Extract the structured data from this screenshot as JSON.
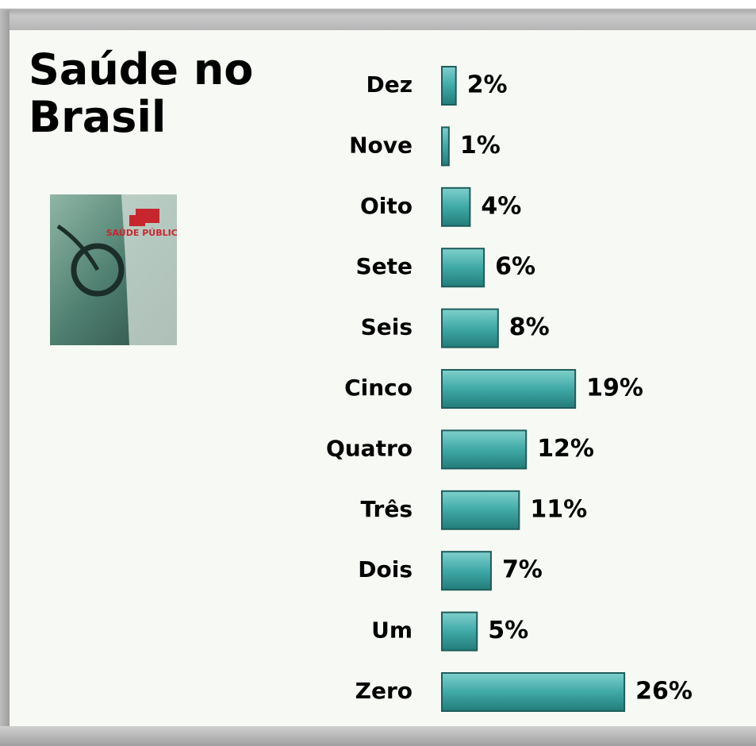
{
  "chart_data": {
    "type": "bar",
    "orientation": "horizontal",
    "title": "Saúde no Brasil",
    "categories": [
      "Dez",
      "Nove",
      "Oito",
      "Sete",
      "Seis",
      "Cinco",
      "Quatro",
      "Três",
      "Dois",
      "Um",
      "Zero"
    ],
    "values": [
      2,
      1,
      4,
      6,
      8,
      19,
      12,
      11,
      7,
      5,
      26
    ],
    "value_labels": [
      "2%",
      "1%",
      "4%",
      "6%",
      "8%",
      "19%",
      "12%",
      "11%",
      "7%",
      "5%",
      "26%"
    ],
    "color": "#3fa9a6"
  },
  "image": {
    "label": "SAÚDE PÚBLICA"
  }
}
